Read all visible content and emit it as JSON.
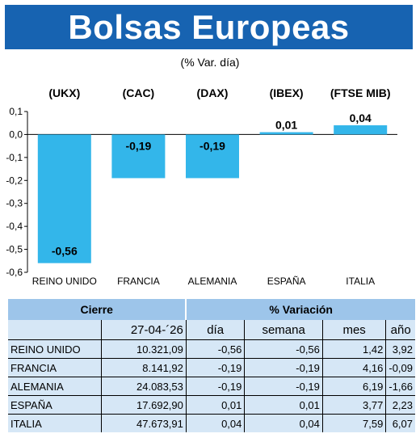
{
  "title": "Bolsas Europeas",
  "subtitle": "(% Var. día)",
  "chart_data": {
    "type": "bar",
    "tickers": [
      "(UKX)",
      "(CAC)",
      "(DAX)",
      "(IBEX)",
      "(FTSE MIB)"
    ],
    "categories": [
      "REINO UNIDO",
      "FRANCIA",
      "ALEMANIA",
      "ESPAÑA",
      "ITALIA"
    ],
    "values": [
      -0.56,
      -0.19,
      -0.19,
      0.01,
      0.04
    ],
    "value_labels": [
      "-0,56",
      "-0,19",
      "-0,19",
      "0,01",
      "0,04"
    ],
    "y_ticks": [
      "0,1",
      "0,0",
      "-0,1",
      "-0,2",
      "-0,3",
      "-0,4",
      "-0,5",
      "-0,6"
    ],
    "ylim": [
      -0.6,
      0.1
    ],
    "bar_color": "#33b6ea",
    "grid": false
  },
  "table": {
    "header_close": "Cierre",
    "header_variation": "% Variación",
    "date": "27-04-´26",
    "col_day": "día",
    "col_week": "semana",
    "col_month": "mes",
    "col_year": "año",
    "rows": [
      {
        "name": "REINO UNIDO",
        "close": "10.321,09",
        "day": "-0,56",
        "week": "-0,56",
        "month": "1,42",
        "year": "3,92"
      },
      {
        "name": "FRANCIA",
        "close": "8.141,92",
        "day": "-0,19",
        "week": "-0,19",
        "month": "4,16",
        "year": "-0,09"
      },
      {
        "name": "ALEMANIA",
        "close": "24.083,53",
        "day": "-0,19",
        "week": "-0,19",
        "month": "6,19",
        "year": "-1,66"
      },
      {
        "name": "ESPAÑA",
        "close": "17.692,90",
        "day": "0,01",
        "week": "0,01",
        "month": "3,77",
        "year": "2,23"
      },
      {
        "name": "ITALIA",
        "close": "47.673,91",
        "day": "0,04",
        "week": "0,04",
        "month": "7,59",
        "year": "6,07"
      }
    ]
  }
}
